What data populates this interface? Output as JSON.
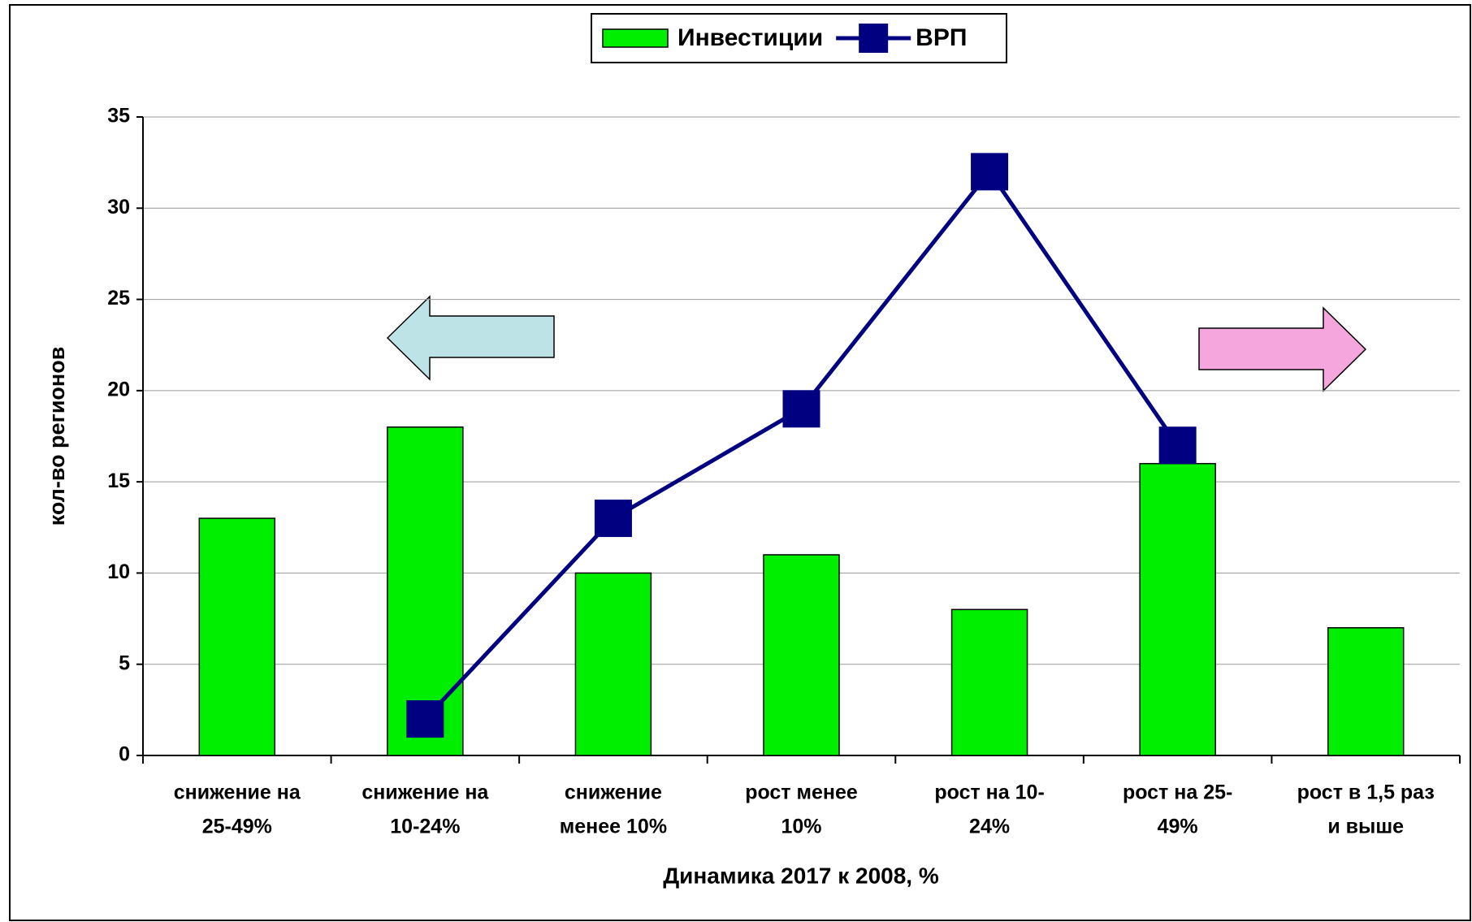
{
  "chart_data": {
    "type": "bar_line",
    "x_label": "Динамика 2017 к 2008, %",
    "y_label": "кол-во регионов",
    "categories": [
      [
        "снижение на",
        "25-49%"
      ],
      [
        "снижение на",
        "10-24%"
      ],
      [
        "снижение",
        "менее 10%"
      ],
      [
        "рост менее",
        "10%"
      ],
      [
        "рост на 10-",
        "24%"
      ],
      [
        "рост на 25-",
        "49%"
      ],
      [
        "рост в 1,5 раз",
        "и выше"
      ]
    ],
    "series": [
      {
        "name": "Инвестиции",
        "type": "bar",
        "color": "#00ee00",
        "values": [
          13,
          18,
          10,
          11,
          8,
          16,
          7
        ]
      },
      {
        "name": "ВРП",
        "type": "line",
        "color": "#000080",
        "values": [
          null,
          2,
          13,
          19,
          32,
          17,
          null
        ]
      }
    ],
    "ylim": [
      0,
      35
    ],
    "yticks": [
      0,
      5,
      10,
      15,
      20,
      25,
      30,
      35
    ],
    "grid": true,
    "legend": "top"
  }
}
